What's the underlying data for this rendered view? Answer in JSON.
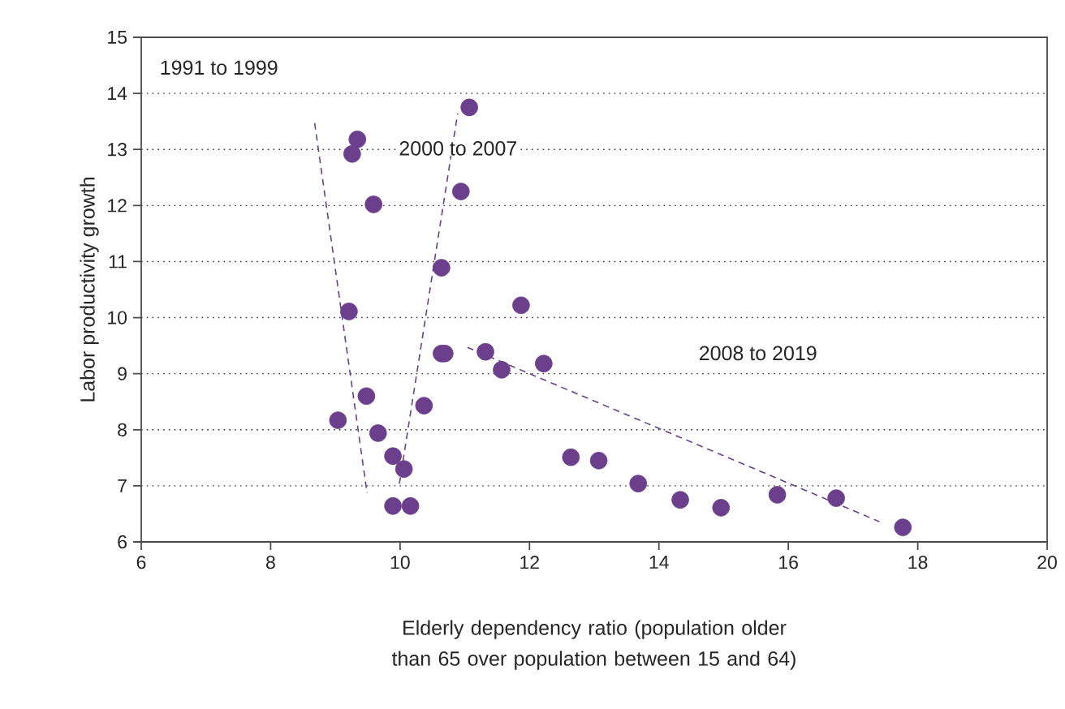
{
  "chart_data": {
    "type": "scatter",
    "xlabel": "Elderly dependency ratio (population older than 65 over population between 15 and 64)",
    "ylabel": "Labor productivity growth",
    "xlim": [
      6,
      20
    ],
    "ylim": [
      6,
      15
    ],
    "xticks": [
      6,
      8,
      10,
      12,
      14,
      16,
      18,
      20
    ],
    "yticks": [
      6,
      7,
      8,
      9,
      10,
      11,
      12,
      13,
      14,
      15
    ],
    "grid": "y",
    "series": [
      {
        "color": "#6b3f8c",
        "marker": "circle",
        "x": [
          9.26,
          9.34,
          9.59,
          9.21,
          9.48,
          9.04,
          9.66,
          9.89,
          10.06,
          9.89,
          10.16,
          10.37,
          10.64,
          10.64,
          10.69,
          10.94,
          11.07,
          11.87,
          11.32,
          11.57,
          12.22,
          12.64,
          13.07,
          13.68,
          14.33,
          14.96,
          15.83,
          16.74,
          17.77
        ],
        "values": [
          12.92,
          13.18,
          12.02,
          10.11,
          8.6,
          8.17,
          7.94,
          7.53,
          7.3,
          6.64,
          6.64,
          8.43,
          10.89,
          9.36,
          9.36,
          12.25,
          13.75,
          10.22,
          9.39,
          9.07,
          9.18,
          7.51,
          7.45,
          7.04,
          6.75,
          6.61,
          6.84,
          6.78,
          6.26
        ]
      },
      {
        "type": "line",
        "color": "#6b3f8c",
        "line_style": "dashed",
        "marker": "none",
        "x": [
          8.68,
          9.49
        ],
        "values": [
          13.47,
          6.87
        ]
      },
      {
        "type": "line",
        "color": "#6b3f8c",
        "line_style": "dashed",
        "marker": "none",
        "x": [
          9.99,
          10.89
        ],
        "values": [
          7.04,
          13.64
        ]
      },
      {
        "type": "line",
        "color": "#6b3f8c",
        "line_style": "dashed",
        "marker": "none",
        "x": [
          11.04,
          17.41
        ],
        "values": [
          9.47,
          6.36
        ]
      }
    ],
    "annotations": [
      "1991 to 1999",
      "2000 to 2007",
      "2008 to 2019"
    ]
  }
}
